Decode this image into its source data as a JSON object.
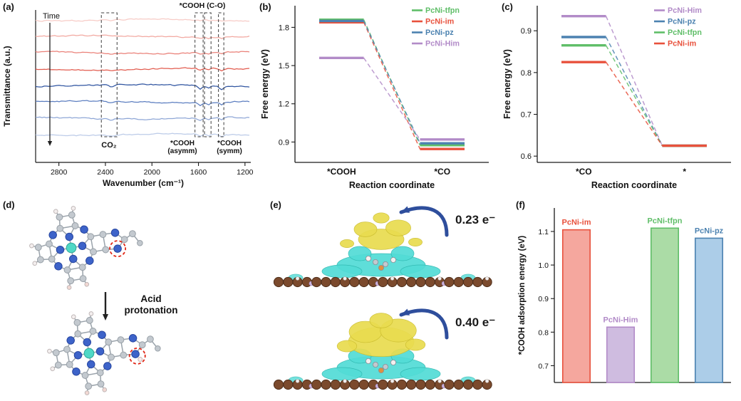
{
  "panel_tags": {
    "a": "(a)",
    "b": "(b)",
    "c": "(c)",
    "d": "(d)",
    "e": "(e)",
    "f": "(f)"
  },
  "palette": {
    "red": "#E8513C",
    "green": "#5FBE68",
    "blue": "#4C82B0",
    "purple": "#B28BC8",
    "axis": "#1a1a1a",
    "teal_center": "#4FD8C6",
    "atom_n_blue": "#3D63C9",
    "atom_c_gray": "#C3C9CF",
    "atom_h_white": "#F4EFEF",
    "atom_h_pink": "#F2D8D3",
    "bond_gray": "#9AA3AB",
    "substrate_brown": "#7B4A2D",
    "substrate_brown_dark": "#4F2F1B",
    "blob_yellow": "#E9DC4F",
    "blob_yellow_edge": "#CBBD2E",
    "blob_cyan": "#52DCD6",
    "blob_cyan_edge": "#2FB8B0",
    "arrow_blue": "#2E4E9C",
    "highlight_red": "#E02818",
    "atom_orange": "#E09040",
    "atom_lavender": "#CBB2DC"
  },
  "palette_light": {
    "red": "#F5A79E",
    "purple": "#CFBCE0",
    "green": "#ABDCA6",
    "blue": "#ACCDE8"
  },
  "panel_d": {
    "arrow_label_line1": "Acid",
    "arrow_label_line2": "protonation"
  },
  "panel_e": {
    "charge_top": "0.23 e⁻",
    "charge_bottom": "0.40 e⁻"
  },
  "chart_data": [
    {
      "id": "a",
      "type": "line",
      "subtype": "operando-ftir-spectra",
      "xlabel": "Wavenumber (cm⁻¹)",
      "ylabel": "Transmittance (a.u.)",
      "x_range": [
        3000,
        1150
      ],
      "x_ticks": [
        2800,
        2400,
        2000,
        1600,
        1200
      ],
      "n_spectra": 8,
      "curve_colors": [
        "#F7CBC6",
        "#F2A8A0",
        "#EA8078",
        "#E25B4E",
        "#2F54A0",
        "#5C7EC0",
        "#8EA6D6",
        "#BCCBE8"
      ],
      "feature_bands_cm": [
        [
          2435,
          2300
        ],
        [
          1630,
          1560
        ],
        [
          1548,
          1492
        ],
        [
          1428,
          1382
        ]
      ],
      "annotations": {
        "time": "Time",
        "cooh_co": "*COOH (C-O)",
        "co2": "CO₂",
        "asymm1": "*COOH",
        "asymm2": "(asymm)",
        "symm1": "*COOH",
        "symm2": "(symm)"
      }
    },
    {
      "id": "b",
      "type": "line",
      "subtype": "free-energy-diagram",
      "xlabel": "Reaction coordinate",
      "ylabel": "Free energy (eV)",
      "categories": [
        "*COOH",
        "*CO"
      ],
      "ylim": [
        0.74,
        1.97
      ],
      "yticks": [
        "0.9",
        "1.2",
        "1.5",
        "1.8"
      ],
      "legend_position": "top-right",
      "series": [
        {
          "name": "PcNi-tfpn",
          "color_key": "green",
          "values": [
            1.86,
            0.875
          ]
        },
        {
          "name": "PcNi-im",
          "color_key": "red",
          "values": [
            1.84,
            0.845
          ]
        },
        {
          "name": "PcNi-pz",
          "color_key": "blue",
          "values": [
            1.85,
            0.89
          ]
        },
        {
          "name": "PcNi-Him",
          "color_key": "purple",
          "values": [
            1.56,
            0.92
          ]
        }
      ]
    },
    {
      "id": "c",
      "type": "line",
      "subtype": "free-energy-diagram",
      "xlabel": "Reaction coordinate",
      "ylabel": "Free energy (eV)",
      "categories": [
        "*CO",
        "*"
      ],
      "ylim": [
        0.585,
        0.96
      ],
      "yticks": [
        "0.6",
        "0.7",
        "0.8",
        "0.9"
      ],
      "legend_position": "top-right",
      "series": [
        {
          "name": "PcNi-Him",
          "color_key": "purple",
          "values": [
            0.935,
            0.625
          ]
        },
        {
          "name": "PcNi-pz",
          "color_key": "blue",
          "values": [
            0.885,
            0.625
          ]
        },
        {
          "name": "PcNi-tfpn",
          "color_key": "green",
          "values": [
            0.865,
            0.625
          ]
        },
        {
          "name": "PcNi-im",
          "color_key": "red",
          "values": [
            0.825,
            0.625
          ]
        }
      ]
    },
    {
      "id": "f",
      "type": "bar",
      "ylabel": "*COOH adsorption energy (eV)",
      "categories": [
        "PcNi-im",
        "PcNi-Him",
        "PcNi-tfpn",
        "PcNi-pz"
      ],
      "values": [
        1.105,
        0.815,
        1.11,
        1.08
      ],
      "color_keys": [
        "red",
        "purple",
        "green",
        "blue"
      ],
      "ylim": [
        0.65,
        1.17
      ],
      "yticks": [
        "0.7",
        "0.8",
        "0.9",
        "1.0",
        "1.1"
      ]
    }
  ]
}
